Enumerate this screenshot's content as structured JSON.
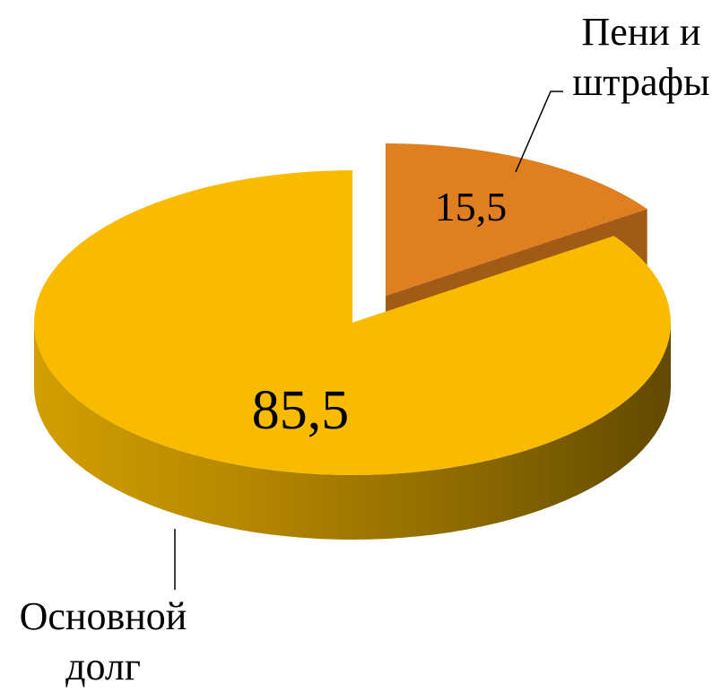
{
  "chart_data": {
    "type": "pie3d",
    "categories": [
      "Основной долг",
      "Пени и штрафы"
    ],
    "values": [
      85.5,
      15.5
    ],
    "value_labels": [
      "85,5",
      "15,5"
    ],
    "colors": [
      "#f8bb00",
      "#e07f20"
    ]
  }
}
